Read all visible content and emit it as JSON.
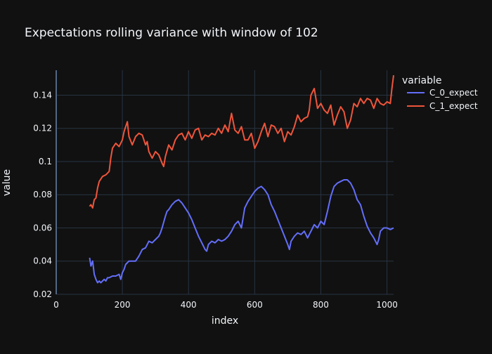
{
  "colors": {
    "background": "#111111",
    "plot_bg": "#111111",
    "grid": "#283442",
    "text": "#f2f5fa",
    "series0": "#636efa",
    "series1": "#EF553B"
  },
  "chart_data": {
    "type": "line",
    "title": "Expectations rolling variance with window of 102",
    "xlabel": "index",
    "ylabel": "value",
    "xlim": [
      0,
      1020
    ],
    "ylim": [
      0.02,
      0.155
    ],
    "xticks": [
      0,
      200,
      400,
      600,
      800,
      1000
    ],
    "xtick_labels": [
      "0",
      "200",
      "400",
      "600",
      "800",
      "1000"
    ],
    "yticks": [
      0.02,
      0.04,
      0.06,
      0.08,
      0.1,
      0.12,
      0.14
    ],
    "ytick_labels": [
      "0.02",
      "0.04",
      "0.06",
      "0.08",
      "0.1",
      "0.12",
      "0.14"
    ],
    "grid": true,
    "legend": {
      "title": "variable",
      "placement": "top-right"
    },
    "series": [
      {
        "name": "C_0_expect",
        "x": [
          101,
          105,
          110,
          115,
          120,
          125,
          130,
          135,
          140,
          145,
          150,
          155,
          160,
          170,
          180,
          190,
          195,
          200,
          205,
          210,
          220,
          230,
          240,
          250,
          260,
          270,
          280,
          290,
          300,
          310,
          315,
          320,
          330,
          335,
          340,
          350,
          360,
          370,
          380,
          390,
          400,
          410,
          420,
          430,
          440,
          450,
          455,
          460,
          470,
          480,
          490,
          500,
          510,
          520,
          530,
          540,
          550,
          560,
          570,
          580,
          590,
          600,
          610,
          620,
          630,
          640,
          650,
          660,
          670,
          680,
          690,
          700,
          705,
          710,
          720,
          730,
          740,
          750,
          760,
          770,
          780,
          790,
          800,
          810,
          820,
          830,
          840,
          850,
          860,
          870,
          880,
          890,
          900,
          910,
          920,
          930,
          940,
          950,
          960,
          970,
          975,
          980,
          990,
          1000,
          1010,
          1020
        ],
        "values": [
          0.042,
          0.037,
          0.04,
          0.032,
          0.029,
          0.027,
          0.028,
          0.027,
          0.028,
          0.029,
          0.028,
          0.03,
          0.03,
          0.031,
          0.031,
          0.032,
          0.029,
          0.033,
          0.035,
          0.038,
          0.04,
          0.04,
          0.04,
          0.043,
          0.047,
          0.048,
          0.052,
          0.051,
          0.053,
          0.055,
          0.057,
          0.06,
          0.067,
          0.07,
          0.071,
          0.074,
          0.076,
          0.077,
          0.075,
          0.072,
          0.069,
          0.065,
          0.06,
          0.055,
          0.051,
          0.047,
          0.046,
          0.05,
          0.052,
          0.051,
          0.053,
          0.052,
          0.053,
          0.055,
          0.058,
          0.062,
          0.064,
          0.06,
          0.072,
          0.076,
          0.079,
          0.082,
          0.084,
          0.085,
          0.083,
          0.08,
          0.074,
          0.07,
          0.065,
          0.06,
          0.055,
          0.05,
          0.047,
          0.052,
          0.055,
          0.057,
          0.056,
          0.058,
          0.054,
          0.058,
          0.062,
          0.06,
          0.064,
          0.062,
          0.07,
          0.079,
          0.085,
          0.087,
          0.088,
          0.089,
          0.089,
          0.087,
          0.083,
          0.077,
          0.074,
          0.067,
          0.061,
          0.057,
          0.054,
          0.05,
          0.053,
          0.058,
          0.06,
          0.06,
          0.059,
          0.06
        ]
      },
      {
        "name": "C_1_expect",
        "x": [
          101,
          105,
          110,
          115,
          120,
          125,
          130,
          140,
          150,
          160,
          165,
          170,
          180,
          190,
          200,
          205,
          210,
          215,
          220,
          230,
          240,
          250,
          260,
          270,
          275,
          280,
          290,
          300,
          310,
          320,
          325,
          330,
          340,
          350,
          360,
          370,
          380,
          390,
          400,
          410,
          420,
          430,
          440,
          450,
          460,
          470,
          480,
          490,
          500,
          510,
          520,
          530,
          540,
          550,
          560,
          570,
          580,
          590,
          600,
          610,
          620,
          630,
          640,
          650,
          660,
          670,
          680,
          690,
          700,
          710,
          720,
          730,
          740,
          750,
          760,
          765,
          770,
          780,
          790,
          800,
          810,
          820,
          830,
          840,
          850,
          860,
          870,
          880,
          890,
          900,
          910,
          920,
          930,
          940,
          950,
          960,
          970,
          980,
          990,
          1000,
          1010,
          1015,
          1020
        ],
        "values": [
          0.073,
          0.074,
          0.072,
          0.077,
          0.078,
          0.084,
          0.088,
          0.091,
          0.092,
          0.094,
          0.102,
          0.108,
          0.111,
          0.109,
          0.113,
          0.118,
          0.121,
          0.124,
          0.115,
          0.11,
          0.115,
          0.117,
          0.116,
          0.11,
          0.112,
          0.106,
          0.102,
          0.106,
          0.104,
          0.099,
          0.097,
          0.103,
          0.11,
          0.107,
          0.113,
          0.116,
          0.117,
          0.113,
          0.118,
          0.114,
          0.119,
          0.12,
          0.113,
          0.116,
          0.115,
          0.117,
          0.116,
          0.12,
          0.117,
          0.122,
          0.118,
          0.129,
          0.119,
          0.117,
          0.121,
          0.113,
          0.113,
          0.117,
          0.108,
          0.112,
          0.118,
          0.123,
          0.115,
          0.122,
          0.121,
          0.117,
          0.12,
          0.112,
          0.118,
          0.116,
          0.121,
          0.128,
          0.124,
          0.126,
          0.127,
          0.131,
          0.14,
          0.144,
          0.132,
          0.135,
          0.131,
          0.129,
          0.134,
          0.122,
          0.128,
          0.133,
          0.13,
          0.12,
          0.125,
          0.135,
          0.133,
          0.138,
          0.135,
          0.138,
          0.137,
          0.132,
          0.138,
          0.135,
          0.134,
          0.136,
          0.135,
          0.144,
          0.152
        ]
      }
    ]
  }
}
